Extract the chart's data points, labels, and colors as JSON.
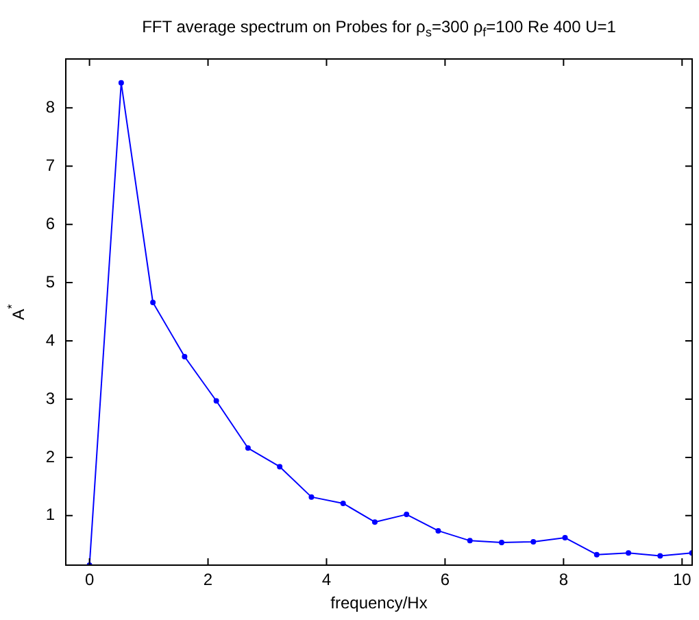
{
  "chart_data": {
    "type": "line",
    "title": "FFT average spectrum on Probes for ρ$_{s}$=300 ρ$_{f}$=100 Re 400 U=1",
    "xlabel": "frequency/Hx",
    "ylabel": "A$^{*}$",
    "x": [
      0,
      0.535,
      1.07,
      1.605,
      2.14,
      2.675,
      3.21,
      3.745,
      4.28,
      4.815,
      5.35,
      5.885,
      6.42,
      6.955,
      7.49,
      8.025,
      8.56,
      9.095,
      9.63,
      10.165
    ],
    "series": [
      {
        "color": "#0000ff",
        "values": [
          0.15,
          8.43,
          4.66,
          3.73,
          2.97,
          2.16,
          1.84,
          1.32,
          1.21,
          0.89,
          1.02,
          0.74,
          0.57,
          0.54,
          0.55,
          0.62,
          0.33,
          0.36,
          0.31,
          0.36
        ]
      }
    ],
    "xlim": [
      -0.4,
      10.17
    ],
    "xticks": [
      0,
      2,
      4,
      6,
      8,
      10
    ],
    "ylim": [
      0.15,
      8.84
    ],
    "yticks": [
      1,
      2,
      3,
      4,
      5,
      6,
      7,
      8
    ],
    "grid": false,
    "legend": false,
    "marker": "circle",
    "line_style": "solid"
  }
}
